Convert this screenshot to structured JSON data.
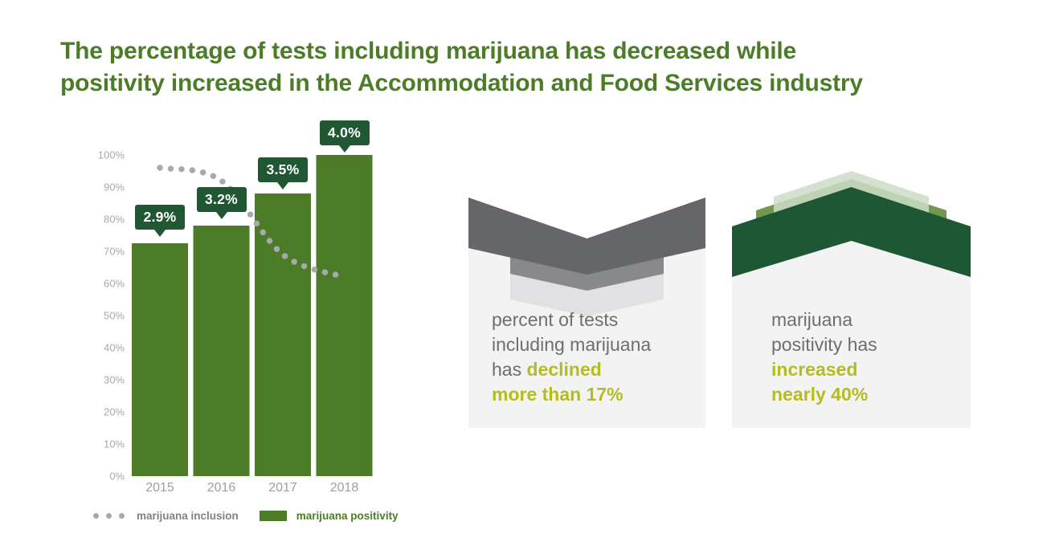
{
  "title": {
    "line1": "The percentage of tests including marijuana has decreased while",
    "line2": "positivity increased in the Accommodation and Food Services industry"
  },
  "colors": {
    "green": "#4d7c29",
    "dark_green": "#215732",
    "chevron_dark_green": "#1d5733",
    "chevron_medium_green": "#72984d",
    "chevron_pale_green": "#cddcc6",
    "chevron_gray": "#656669",
    "chevron_medium_gray": "#88898d",
    "chevron_light_gray": "#e1e1e3",
    "lime_accent": "#b4bd1e",
    "body_gray": "#6d6e71",
    "axis_gray": "#a7a8aa",
    "dot_gray": "#a8a9ad",
    "card_bg": "#f3f3f4"
  },
  "chart_data": {
    "type": "bar",
    "title": "",
    "xlabel": "",
    "ylabel": "",
    "ylim": [
      0,
      100
    ],
    "grid": false,
    "categories": [
      "2015",
      "2016",
      "2017",
      "2018"
    ],
    "y_ticks": [
      "100%",
      "90%",
      "80%",
      "70%",
      "60%",
      "50%",
      "40%",
      "30%",
      "20%",
      "10%",
      "0%"
    ],
    "series": [
      {
        "name": "marijuana positivity",
        "type": "bar",
        "values": [
          2.9,
          3.2,
          3.5,
          4.0
        ],
        "unit": "%",
        "labels": [
          "2.9%",
          "3.2%",
          "3.5%",
          "4.0%"
        ],
        "bar_height_pct_of_axis": [
          72.5,
          78,
          88,
          100
        ]
      },
      {
        "name": "marijuana inclusion",
        "type": "dotted-line",
        "axis_position_pct": [
          96,
          92,
          69,
          62
        ],
        "note": "indexed dotted trend line, declines from ~96% to ~62% of axis"
      }
    ],
    "legend": [
      {
        "label": "marijuana inclusion",
        "swatch": "dots",
        "color": "#a8a9ad"
      },
      {
        "label": "marijuana positivity",
        "swatch": "square",
        "color": "#4d7c29"
      }
    ],
    "legend_position": "bottom-left"
  },
  "cards": {
    "decline": {
      "direction": "down",
      "lines": [
        [
          {
            "t": "percent of tests",
            "s": "plain"
          }
        ],
        [
          {
            "t": "including marijuana",
            "s": "plain"
          }
        ],
        [
          {
            "t": "has ",
            "s": "plain"
          },
          {
            "t": "declined",
            "s": "accent"
          }
        ],
        [
          {
            "t": "more than 17%",
            "s": "accent"
          }
        ]
      ]
    },
    "increase": {
      "direction": "up",
      "lines": [
        [
          {
            "t": "marijuana",
            "s": "plain"
          }
        ],
        [
          {
            "t": "positivity has",
            "s": "plain"
          }
        ],
        [
          {
            "t": "increased",
            "s": "accent"
          }
        ],
        [
          {
            "t": "nearly 40%",
            "s": "accent"
          }
        ]
      ]
    }
  }
}
